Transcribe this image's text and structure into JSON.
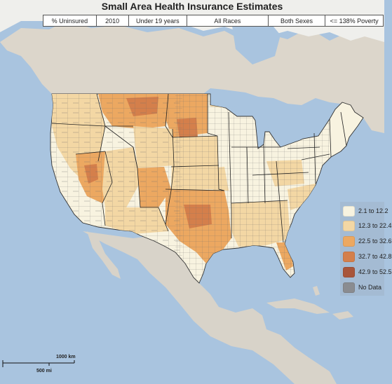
{
  "title": "Small Area Health Insurance Estimates",
  "filters": [
    {
      "name": "measure",
      "label": "% Uninsured",
      "width": 76
    },
    {
      "name": "year",
      "label": "2010",
      "width": 46
    },
    {
      "name": "age",
      "label": "Under 19 years",
      "width": 84
    },
    {
      "name": "race",
      "label": "All Races",
      "width": 116
    },
    {
      "name": "sex",
      "label": "Both Sexes",
      "width": 82
    },
    {
      "name": "income",
      "label": "<= 138% Poverty",
      "width": 82
    }
  ],
  "legend": {
    "items": [
      {
        "label": "2.1 to 12.2",
        "color": "#f8f3e0"
      },
      {
        "label": "12.3 to 22.4",
        "color": "#f3d7a4"
      },
      {
        "label": "22.5 to 32.6",
        "color": "#eca861"
      },
      {
        "label": "32.7 to 42.8",
        "color": "#d47f4b"
      },
      {
        "label": "42.9 to 52.5",
        "color": "#a8553a"
      },
      {
        "label": "No Data",
        "color": "#8a8c90"
      }
    ]
  },
  "scale": {
    "km_label": "1000 km",
    "mi_label": "500 mi"
  },
  "colors": {
    "water": "#a9c4df",
    "land": "#d8d3c9",
    "land_light": "#e9e6df",
    "ice": "#f2f2f0"
  }
}
